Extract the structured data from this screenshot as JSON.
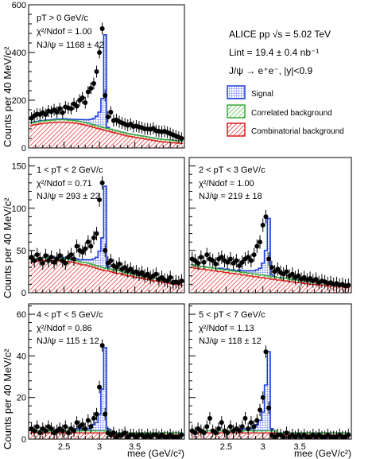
{
  "colors": {
    "signal_stroke": "#1f3fd6",
    "signal_hatch": "#4a63e6",
    "corr_stroke": "#3aa83a",
    "corr_hatch": "#52c152",
    "comb_stroke": "#e01818",
    "comb_hatch": "#e83a3a",
    "points": "#000000"
  },
  "header": {
    "experiment": "ALICE pp √s = 5.02 TeV",
    "luminosity": "Lint = 19.4 ± 0.4 nb⁻¹",
    "decay": "J/ψ → e⁺e⁻, |y|<0.9"
  },
  "legend": {
    "signal": "Signal",
    "correlated": "Correlated background",
    "combinatorial": "Combinatorial background"
  },
  "axes": {
    "xlabel": "mee (GeV/c²)",
    "ylabel": "Counts per 40 MeV/c²"
  },
  "chart_data": [
    {
      "type": "line",
      "id": "p0",
      "ptbin": "pT > 0 GeV/c",
      "chi2": "χ²/Ndof = 1.00",
      "njpsi": "NJ/ψ = 1168 ± 42",
      "xlim": [
        2.0,
        4.2
      ],
      "ylim": [
        0,
        600
      ],
      "yticks": [
        0,
        200,
        400,
        600
      ],
      "xticks": [
        2.5,
        3.0,
        3.5
      ],
      "x": [
        2.04,
        2.08,
        2.12,
        2.16,
        2.2,
        2.24,
        2.28,
        2.32,
        2.36,
        2.4,
        2.44,
        2.48,
        2.52,
        2.56,
        2.6,
        2.64,
        2.68,
        2.72,
        2.76,
        2.8,
        2.84,
        2.88,
        2.92,
        2.96,
        3.0,
        3.04,
        3.08,
        3.12,
        3.16,
        3.2,
        3.24,
        3.28,
        3.32,
        3.36,
        3.4,
        3.44,
        3.48,
        3.52,
        3.56,
        3.6,
        3.64,
        3.68,
        3.72,
        3.76,
        3.8,
        3.84,
        3.88,
        3.92,
        3.96,
        4.0,
        4.04,
        4.08,
        4.12,
        4.16
      ],
      "y": [
        125,
        135,
        142,
        140,
        148,
        140,
        155,
        152,
        160,
        150,
        165,
        148,
        172,
        168,
        165,
        185,
        175,
        200,
        210,
        190,
        235,
        250,
        270,
        320,
        400,
        500,
        220,
        130,
        150,
        115,
        118,
        110,
        105,
        100,
        95,
        100,
        90,
        92,
        88,
        85,
        80,
        80,
        78,
        82,
        72,
        70,
        68,
        70,
        65,
        60,
        55,
        50,
        45,
        40
      ],
      "yerr": 25,
      "comb": [
        95,
        97,
        99,
        101,
        103,
        104,
        105,
        106,
        107,
        108,
        108,
        108,
        108,
        107,
        106,
        105,
        103,
        101,
        99,
        96,
        93,
        90,
        86,
        83,
        80,
        77,
        74,
        71,
        68,
        65,
        62,
        59,
        56,
        53,
        50,
        48,
        46,
        44,
        42,
        40,
        38,
        36,
        34,
        32,
        30,
        28,
        26,
        25,
        24,
        23,
        22,
        21,
        20,
        19
      ],
      "corr": [
        10,
        10,
        10,
        10,
        10,
        10,
        10,
        10,
        10,
        10,
        10,
        10,
        10,
        10,
        10,
        10,
        10,
        10,
        10,
        10,
        10,
        10,
        10,
        10,
        10,
        10,
        10,
        10,
        10,
        10,
        10,
        10,
        10,
        10,
        10,
        10,
        10,
        10,
        10,
        10,
        10,
        10,
        10,
        10,
        10,
        10,
        10,
        10,
        10,
        10,
        10,
        10,
        10,
        10
      ],
      "signal": [
        2,
        2,
        2,
        2,
        2,
        2,
        2,
        2,
        3,
        3,
        3,
        3,
        4,
        4,
        4,
        5,
        6,
        8,
        10,
        12,
        15,
        20,
        28,
        40,
        60,
        120,
        390,
        5,
        0,
        0,
        0,
        0,
        0,
        0,
        0,
        0,
        0,
        0,
        0,
        0,
        0,
        0,
        0,
        0,
        0,
        0,
        0,
        0,
        0,
        0,
        0,
        0,
        0,
        0
      ]
    },
    {
      "type": "line",
      "id": "p1",
      "ptbin": "1 < pT < 2 GeV/c",
      "chi2": "χ²/Ndof = 0.71",
      "njpsi": "NJ/ψ = 293 ± 22",
      "xlim": [
        2.0,
        4.2
      ],
      "ylim": [
        0,
        160
      ],
      "yticks": [
        0,
        50,
        100,
        150
      ],
      "xticks": [
        2.5,
        3.0,
        3.5
      ],
      "x": [
        2.04,
        2.08,
        2.12,
        2.16,
        2.2,
        2.24,
        2.28,
        2.32,
        2.36,
        2.4,
        2.44,
        2.48,
        2.52,
        2.56,
        2.6,
        2.64,
        2.68,
        2.72,
        2.76,
        2.8,
        2.84,
        2.88,
        2.92,
        2.96,
        3.0,
        3.04,
        3.08,
        3.12,
        3.16,
        3.2,
        3.24,
        3.28,
        3.32,
        3.36,
        3.4,
        3.44,
        3.48,
        3.52,
        3.56,
        3.6,
        3.64,
        3.68,
        3.72,
        3.76,
        3.8,
        3.84,
        3.88,
        3.92,
        3.96,
        4.0,
        4.04,
        4.08,
        4.12,
        4.16
      ],
      "y": [
        42,
        38,
        45,
        40,
        35,
        44,
        38,
        42,
        36,
        40,
        44,
        38,
        35,
        42,
        45,
        40,
        55,
        50,
        48,
        52,
        60,
        55,
        65,
        70,
        110,
        130,
        50,
        35,
        38,
        32,
        30,
        34,
        28,
        30,
        26,
        28,
        24,
        25,
        22,
        24,
        20,
        22,
        18,
        20,
        22,
        16,
        18,
        15,
        14,
        18,
        12,
        13,
        12,
        14
      ],
      "yerr": 8,
      "comb": [
        36,
        37,
        37,
        38,
        38,
        38,
        38,
        38,
        38,
        38,
        38,
        38,
        37,
        37,
        36,
        36,
        35,
        34,
        33,
        33,
        32,
        31,
        30,
        29,
        28,
        27,
        26,
        26,
        25,
        24,
        23,
        23,
        22,
        21,
        20,
        20,
        19,
        18,
        18,
        17,
        16,
        16,
        15,
        14,
        14,
        13,
        13,
        12,
        12,
        11,
        11,
        10,
        10,
        9
      ],
      "corr": [
        3,
        3,
        3,
        3,
        3,
        3,
        3,
        3,
        3,
        3,
        3,
        3,
        3,
        3,
        3,
        3,
        3,
        3,
        3,
        3,
        3,
        3,
        3,
        3,
        3,
        3,
        3,
        3,
        3,
        3,
        3,
        3,
        3,
        3,
        3,
        3,
        3,
        3,
        3,
        3,
        3,
        3,
        3,
        3,
        3,
        3,
        3,
        3,
        3,
        3,
        3,
        3,
        3,
        3
      ],
      "signal": [
        0,
        0,
        0,
        0,
        0,
        0,
        0,
        0,
        1,
        1,
        1,
        1,
        1,
        1,
        1,
        2,
        2,
        2,
        3,
        3,
        4,
        5,
        7,
        10,
        18,
        35,
        97,
        2,
        0,
        0,
        0,
        0,
        0,
        0,
        0,
        0,
        0,
        0,
        0,
        0,
        0,
        0,
        0,
        0,
        0,
        0,
        0,
        0,
        0,
        0,
        0,
        0,
        0,
        0
      ]
    },
    {
      "type": "line",
      "id": "p2",
      "ptbin": "2 < pT < 3 GeV/c",
      "chi2": "χ²/Ndof = 1.00",
      "njpsi": "NJ/ψ = 219 ± 18",
      "xlim": [
        2.0,
        4.2
      ],
      "ylim": [
        0,
        160
      ],
      "yticks": [
        0,
        50,
        100,
        150
      ],
      "xticks": [
        2.5,
        3.0,
        3.5
      ],
      "x": [
        2.04,
        2.08,
        2.12,
        2.16,
        2.2,
        2.24,
        2.28,
        2.32,
        2.36,
        2.4,
        2.44,
        2.48,
        2.52,
        2.56,
        2.6,
        2.64,
        2.68,
        2.72,
        2.76,
        2.8,
        2.84,
        2.88,
        2.92,
        2.96,
        3.0,
        3.04,
        3.08,
        3.12,
        3.16,
        3.2,
        3.24,
        3.28,
        3.32,
        3.36,
        3.4,
        3.44,
        3.48,
        3.52,
        3.56,
        3.6,
        3.64,
        3.68,
        3.72,
        3.76,
        3.8,
        3.84,
        3.88,
        3.92,
        3.96,
        4.0,
        4.04,
        4.08,
        4.12,
        4.16
      ],
      "y": [
        40,
        38,
        35,
        42,
        36,
        45,
        40,
        38,
        34,
        40,
        42,
        38,
        36,
        40,
        35,
        38,
        32,
        36,
        40,
        42,
        38,
        45,
        55,
        60,
        80,
        90,
        40,
        30,
        25,
        28,
        24,
        22,
        25,
        20,
        22,
        18,
        20,
        16,
        18,
        15,
        17,
        14,
        16,
        12,
        14,
        13,
        11,
        12,
        10,
        11,
        9,
        10,
        8,
        9
      ],
      "yerr": 8,
      "comb": [
        30,
        29,
        29,
        28,
        28,
        27,
        27,
        26,
        26,
        25,
        25,
        24,
        24,
        23,
        23,
        22,
        22,
        21,
        21,
        20,
        20,
        19,
        19,
        18,
        18,
        17,
        17,
        16,
        16,
        15,
        15,
        14,
        14,
        13,
        13,
        12,
        12,
        12,
        11,
        11,
        10,
        10,
        10,
        9,
        9,
        9,
        8,
        8,
        8,
        7,
        7,
        7,
        6,
        6
      ],
      "corr": [
        3,
        3,
        3,
        3,
        3,
        3,
        3,
        3,
        3,
        3,
        3,
        3,
        3,
        3,
        3,
        3,
        3,
        3,
        3,
        3,
        3,
        3,
        3,
        3,
        3,
        3,
        3,
        3,
        3,
        3,
        3,
        3,
        3,
        3,
        3,
        3,
        3,
        3,
        3,
        3,
        3,
        3,
        3,
        3,
        3,
        3,
        3,
        3,
        3,
        3,
        3,
        3,
        3,
        3
      ],
      "signal": [
        0,
        0,
        0,
        0,
        0,
        0,
        0,
        0,
        0,
        1,
        1,
        1,
        1,
        1,
        1,
        1,
        2,
        2,
        2,
        3,
        3,
        4,
        5,
        8,
        14,
        30,
        68,
        2,
        0,
        0,
        0,
        0,
        0,
        0,
        0,
        0,
        0,
        0,
        0,
        0,
        0,
        0,
        0,
        0,
        0,
        0,
        0,
        0,
        0,
        0,
        0,
        0,
        0,
        0
      ]
    },
    {
      "type": "line",
      "id": "p3",
      "ptbin": "4 < pT < 5 GeV/c",
      "chi2": "χ²/Ndof = 0.86",
      "njpsi": "NJ/ψ = 115 ± 12",
      "xlim": [
        2.0,
        4.2
      ],
      "ylim": [
        0,
        65
      ],
      "yticks": [
        0,
        20,
        40,
        60
      ],
      "xticks": [
        2.5,
        3.0,
        3.5
      ],
      "x": [
        2.04,
        2.08,
        2.12,
        2.16,
        2.2,
        2.24,
        2.28,
        2.32,
        2.36,
        2.4,
        2.44,
        2.48,
        2.52,
        2.56,
        2.6,
        2.64,
        2.68,
        2.72,
        2.76,
        2.8,
        2.84,
        2.88,
        2.92,
        2.96,
        3.0,
        3.04,
        3.08,
        3.12,
        3.16,
        3.2,
        3.24,
        3.28,
        3.32,
        3.36,
        3.4,
        3.44,
        3.48,
        3.52,
        3.56,
        3.6,
        3.64,
        3.68,
        3.72,
        3.76,
        3.8,
        3.84,
        3.88,
        3.92,
        3.96,
        4.0,
        4.04,
        4.08,
        4.12,
        4.16
      ],
      "y": [
        5,
        4,
        6,
        3,
        5,
        4,
        6,
        5,
        3,
        4,
        5,
        4,
        6,
        3,
        5,
        4,
        8,
        6,
        7,
        5,
        9,
        6,
        10,
        12,
        25,
        45,
        12,
        3,
        2,
        3,
        1,
        2,
        2,
        3,
        1,
        2,
        2,
        1,
        2,
        2,
        1,
        2,
        1,
        2,
        2,
        1,
        2,
        1,
        1,
        2,
        1,
        1,
        1,
        2
      ],
      "yerr": 3,
      "comb": [
        3,
        3,
        3,
        3,
        3,
        3,
        3,
        3,
        3,
        3,
        3,
        3,
        3,
        3,
        3,
        3,
        3,
        3,
        3,
        3,
        3,
        3,
        3,
        3,
        3,
        3,
        3,
        3,
        3,
        2,
        2,
        2,
        2,
        2,
        2,
        2,
        2,
        2,
        2,
        2,
        2,
        2,
        2,
        2,
        2,
        2,
        2,
        2,
        2,
        2,
        2,
        2,
        2,
        2
      ],
      "corr": [
        1,
        1,
        1,
        1,
        1,
        1,
        1,
        1,
        1,
        1,
        1,
        1,
        1,
        1,
        1,
        1,
        1,
        1,
        1,
        1,
        1,
        1,
        1,
        1,
        1,
        1,
        1,
        1,
        1,
        1,
        1,
        1,
        1,
        1,
        1,
        1,
        1,
        1,
        1,
        1,
        1,
        1,
        1,
        1,
        1,
        1,
        1,
        1,
        1,
        1,
        1,
        1,
        1,
        1
      ],
      "signal": [
        0,
        0,
        0,
        0,
        0,
        0,
        0,
        0,
        0,
        0,
        0,
        0,
        0,
        0,
        0,
        0,
        1,
        1,
        1,
        1,
        1,
        2,
        3,
        4,
        8,
        20,
        40,
        1,
        0,
        0,
        0,
        0,
        0,
        0,
        0,
        0,
        0,
        0,
        0,
        0,
        0,
        0,
        0,
        0,
        0,
        0,
        0,
        0,
        0,
        0,
        0,
        0,
        0,
        0
      ]
    },
    {
      "type": "line",
      "id": "p4",
      "ptbin": "5 < pT < 7 GeV/c",
      "chi2": "χ²/Ndof = 1.13",
      "njpsi": "NJ/ψ = 118 ± 12",
      "xlim": [
        2.0,
        4.2
      ],
      "ylim": [
        0,
        65
      ],
      "yticks": [
        0,
        20,
        40,
        60
      ],
      "xticks": [
        2.5,
        3.0,
        3.5
      ],
      "x": [
        2.04,
        2.08,
        2.12,
        2.16,
        2.2,
        2.24,
        2.28,
        2.32,
        2.36,
        2.4,
        2.44,
        2.48,
        2.52,
        2.56,
        2.6,
        2.64,
        2.68,
        2.72,
        2.76,
        2.8,
        2.84,
        2.88,
        2.92,
        2.96,
        3.0,
        3.04,
        3.08,
        3.12,
        3.16,
        3.2,
        3.24,
        3.28,
        3.32,
        3.36,
        3.4,
        3.44,
        3.48,
        3.52,
        3.56,
        3.6,
        3.64,
        3.68,
        3.72,
        3.76,
        3.8,
        3.84,
        3.88,
        3.92,
        3.96,
        4.0,
        4.04,
        4.08,
        4.12,
        4.16
      ],
      "y": [
        4,
        3,
        5,
        4,
        3,
        6,
        10,
        4,
        3,
        5,
        8,
        4,
        3,
        6,
        4,
        5,
        4,
        6,
        10,
        5,
        8,
        6,
        9,
        14,
        20,
        42,
        15,
        2,
        1,
        2,
        2,
        1,
        3,
        1,
        2,
        1,
        2,
        1,
        2,
        1,
        1,
        2,
        1,
        2,
        1,
        1,
        2,
        1,
        1,
        1,
        2,
        1,
        1,
        2
      ],
      "yerr": 3,
      "comb": [
        3,
        3,
        3,
        3,
        3,
        3,
        3,
        3,
        3,
        3,
        3,
        3,
        3,
        3,
        3,
        3,
        3,
        3,
        3,
        3,
        3,
        3,
        3,
        3,
        3,
        3,
        3,
        3,
        3,
        2,
        2,
        2,
        2,
        2,
        2,
        2,
        2,
        2,
        2,
        2,
        2,
        2,
        2,
        2,
        2,
        2,
        2,
        2,
        2,
        2,
        2,
        2,
        2,
        2
      ],
      "corr": [
        1,
        1,
        1,
        1,
        1,
        1,
        1,
        1,
        1,
        1,
        1,
        1,
        1,
        1,
        1,
        1,
        1,
        1,
        1,
        1,
        1,
        1,
        1,
        1,
        1,
        1,
        1,
        1,
        1,
        1,
        1,
        1,
        1,
        1,
        1,
        1,
        1,
        1,
        1,
        1,
        1,
        1,
        1,
        1,
        1,
        1,
        1,
        1,
        1,
        1,
        1,
        1,
        1,
        1
      ],
      "signal": [
        0,
        0,
        0,
        0,
        0,
        0,
        0,
        0,
        0,
        0,
        0,
        0,
        0,
        0,
        0,
        0,
        1,
        1,
        1,
        1,
        1,
        2,
        3,
        5,
        9,
        22,
        38,
        1,
        0,
        0,
        0,
        0,
        0,
        0,
        0,
        0,
        0,
        0,
        0,
        0,
        0,
        0,
        0,
        0,
        0,
        0,
        0,
        0,
        0,
        0,
        0,
        0,
        0,
        0
      ]
    }
  ]
}
